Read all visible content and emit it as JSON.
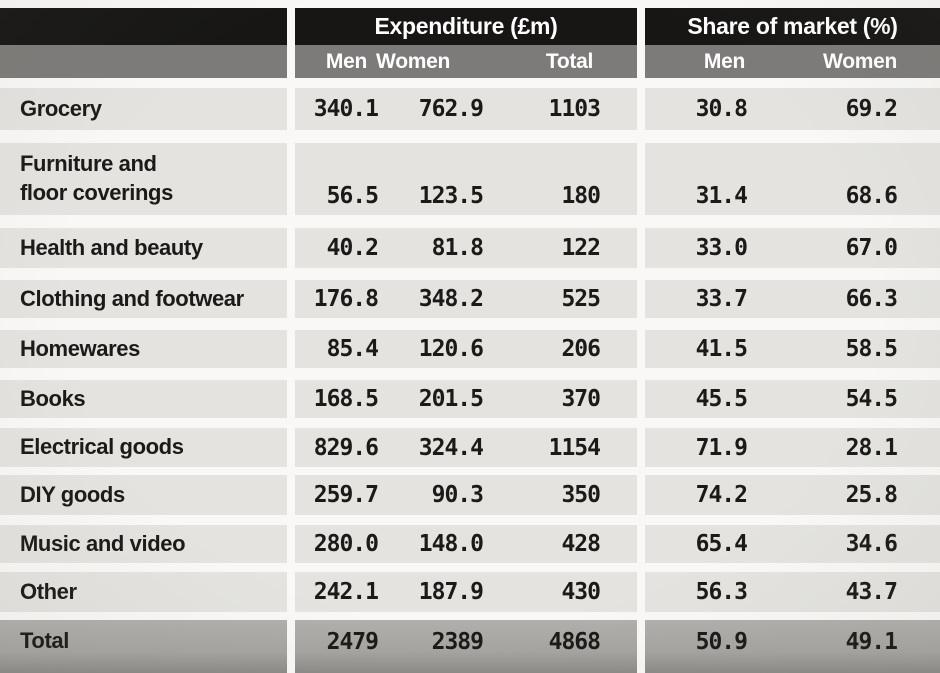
{
  "table": {
    "groups": [
      {
        "title": "Expenditure (£m)",
        "columns": [
          "Men",
          "Women",
          "Total"
        ]
      },
      {
        "title": "Share of market (%)",
        "columns": [
          "Men",
          "Women"
        ]
      }
    ],
    "rows": [
      {
        "label": "Grocery",
        "expenditure": [
          "340.1",
          "762.9",
          "1103"
        ],
        "share": [
          "30.8",
          "69.2"
        ]
      },
      {
        "label": "Furniture and\nfloor coverings",
        "expenditure": [
          "56.5",
          "123.5",
          "180"
        ],
        "share": [
          "31.4",
          "68.6"
        ]
      },
      {
        "label": "Health and beauty",
        "expenditure": [
          "40.2",
          "81.8",
          "122"
        ],
        "share": [
          "33.0",
          "67.0"
        ]
      },
      {
        "label": "Clothing and footwear",
        "expenditure": [
          "176.8",
          "348.2",
          "525"
        ],
        "share": [
          "33.7",
          "66.3"
        ]
      },
      {
        "label": "Homewares",
        "expenditure": [
          "85.4",
          "120.6",
          "206"
        ],
        "share": [
          "41.5",
          "58.5"
        ]
      },
      {
        "label": "Books",
        "expenditure": [
          "168.5",
          "201.5",
          "370"
        ],
        "share": [
          "45.5",
          "54.5"
        ]
      },
      {
        "label": "Electrical goods",
        "expenditure": [
          "829.6",
          "324.4",
          "1154"
        ],
        "share": [
          "71.9",
          "28.1"
        ]
      },
      {
        "label": "DIY goods",
        "expenditure": [
          "259.7",
          "90.3",
          "350"
        ],
        "share": [
          "74.2",
          "25.8"
        ]
      },
      {
        "label": "Music and video",
        "expenditure": [
          "280.0",
          "148.0",
          "428"
        ],
        "share": [
          "65.4",
          "34.6"
        ]
      },
      {
        "label": "Other",
        "expenditure": [
          "242.1",
          "187.9",
          "430"
        ],
        "share": [
          "56.3",
          "43.7"
        ]
      },
      {
        "label": "Total",
        "expenditure": [
          "2479",
          "2389",
          "4868"
        ],
        "share": [
          "50.9",
          "49.1"
        ],
        "is_total": true
      }
    ]
  },
  "colors": {
    "header_black": "#171614",
    "header_gray": "#7c7b79",
    "row_band": "#e4e3df",
    "total_band_top": "#b0afab",
    "total_band_bottom": "#8b8a86",
    "page": "#f9f8f6",
    "ink": "#1b1a18"
  },
  "chart_data": {
    "type": "table",
    "title": "",
    "column_groups": [
      "Expenditure (£m)",
      "Share of market (%)"
    ],
    "categories": [
      "Grocery",
      "Furniture and floor coverings",
      "Health and beauty",
      "Clothing and footwear",
      "Homewares",
      "Books",
      "Electrical goods",
      "DIY goods",
      "Music and video",
      "Other"
    ],
    "series": [
      {
        "name": "Expenditure Men (£m)",
        "values": [
          340.1,
          56.5,
          40.2,
          176.8,
          85.4,
          168.5,
          829.6,
          259.7,
          280.0,
          242.1
        ]
      },
      {
        "name": "Expenditure Women (£m)",
        "values": [
          762.9,
          123.5,
          81.8,
          348.2,
          120.6,
          201.5,
          324.4,
          90.3,
          148.0,
          187.9
        ]
      },
      {
        "name": "Expenditure Total (£m)",
        "values": [
          1103,
          180,
          122,
          525,
          206,
          370,
          1154,
          350,
          428,
          430
        ]
      },
      {
        "name": "Share of market Men (%)",
        "values": [
          30.8,
          31.4,
          33.0,
          33.7,
          41.5,
          45.5,
          71.9,
          74.2,
          65.4,
          56.3
        ]
      },
      {
        "name": "Share of market Women (%)",
        "values": [
          69.2,
          68.6,
          67.0,
          66.3,
          58.5,
          54.5,
          28.1,
          25.8,
          34.6,
          43.7
        ]
      }
    ],
    "totals_row": {
      "label": "Total",
      "expenditure_men": 2479,
      "expenditure_women": 2389,
      "expenditure_total": 4868,
      "share_men": 50.9,
      "share_women": 49.1
    }
  }
}
